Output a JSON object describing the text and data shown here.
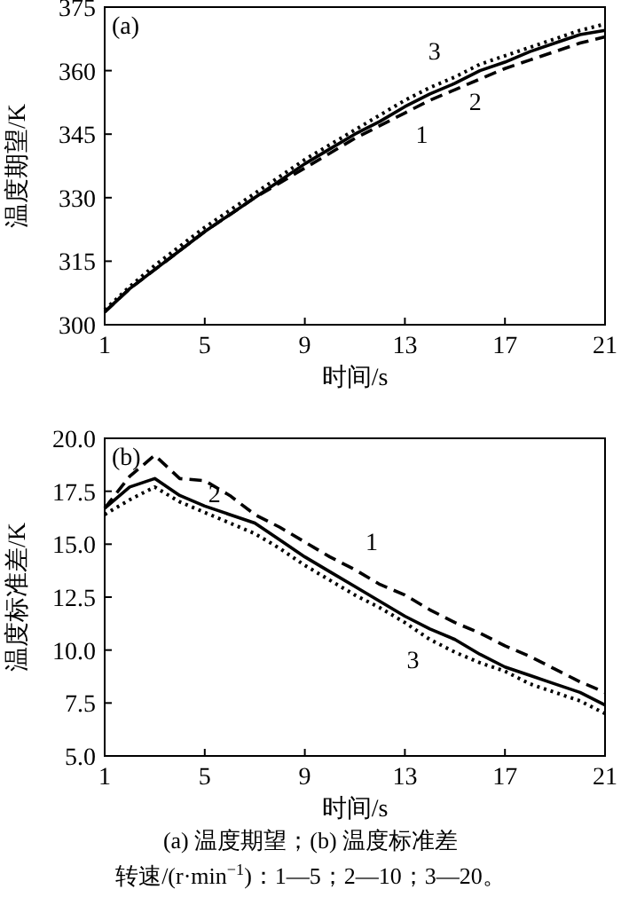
{
  "chart_data": [
    {
      "type": "line",
      "title": "(a)",
      "xlabel": "时间/s",
      "ylabel": "温度期望/K",
      "x": [
        1,
        2,
        3,
        4,
        5,
        6,
        7,
        8,
        9,
        10,
        11,
        12,
        13,
        14,
        15,
        16,
        17,
        18,
        19,
        20,
        21
      ],
      "xlim": [
        1,
        21
      ],
      "xticks": [
        1,
        5,
        9,
        13,
        17,
        21
      ],
      "ylim": [
        300,
        375
      ],
      "yticks": [
        300,
        315,
        330,
        345,
        360,
        375
      ],
      "series": [
        {
          "name": "1",
          "color": "#000000",
          "line_style": "dashed",
          "values": [
            303,
            308.5,
            313,
            317.5,
            322,
            326,
            330,
            333.5,
            337,
            340.5,
            344,
            347,
            350,
            353,
            355.5,
            358,
            360.5,
            362.5,
            364.5,
            366.5,
            368
          ]
        },
        {
          "name": "2",
          "color": "#000000",
          "line_style": "solid",
          "values": [
            303,
            308.5,
            313,
            317.5,
            322,
            326,
            330,
            334,
            338,
            341.5,
            345,
            348,
            351.5,
            354.5,
            357,
            360,
            362,
            364.5,
            366.5,
            368.5,
            369.5
          ]
        },
        {
          "name": "3",
          "color": "#000000",
          "line_style": "dotted",
          "values": [
            303.5,
            309,
            314,
            318.5,
            323,
            327,
            331,
            335,
            339,
            342.5,
            346,
            349.5,
            353,
            356,
            358.5,
            361.5,
            363.5,
            365.5,
            367.5,
            369.5,
            371
          ]
        }
      ]
    },
    {
      "type": "line",
      "title": "(b)",
      "xlabel": "时间/s",
      "ylabel": "温度标准差/K",
      "x": [
        1,
        2,
        3,
        4,
        5,
        6,
        7,
        8,
        9,
        10,
        11,
        12,
        13,
        14,
        15,
        16,
        17,
        18,
        19,
        20,
        21
      ],
      "xlim": [
        1,
        21
      ],
      "xticks": [
        1,
        5,
        9,
        13,
        17,
        21
      ],
      "ylim": [
        5,
        20
      ],
      "yticks": [
        {
          "value": 5,
          "label": "5.0"
        },
        {
          "value": 7.5,
          "label": "7.5"
        },
        {
          "value": 10,
          "label": "10.0"
        },
        {
          "value": 12.5,
          "label": "12.5"
        },
        {
          "value": 15,
          "label": "15.0"
        },
        {
          "value": 17.5,
          "label": "17.5"
        },
        {
          "value": 20,
          "label": "20.0"
        }
      ],
      "series": [
        {
          "name": "1",
          "color": "#000000",
          "line_style": "dashed",
          "values": [
            16.7,
            18.2,
            19.2,
            18.1,
            18.0,
            17.3,
            16.4,
            15.8,
            15.1,
            14.4,
            13.8,
            13.1,
            12.6,
            11.9,
            11.3,
            10.8,
            10.2,
            9.7,
            9.1,
            8.5,
            8.0
          ]
        },
        {
          "name": "2",
          "color": "#000000",
          "line_style": "solid",
          "values": [
            16.7,
            17.7,
            18.1,
            17.3,
            16.8,
            16.4,
            16.0,
            15.2,
            14.4,
            13.7,
            13.0,
            12.3,
            11.6,
            11.0,
            10.5,
            9.8,
            9.2,
            8.8,
            8.4,
            8.0,
            7.4
          ]
        },
        {
          "name": "3",
          "color": "#000000",
          "line_style": "dotted",
          "values": [
            16.4,
            17.1,
            17.7,
            17.0,
            16.5,
            16.0,
            15.5,
            14.8,
            14.0,
            13.3,
            12.6,
            12.0,
            11.3,
            10.5,
            9.9,
            9.4,
            9.0,
            8.4,
            8.0,
            7.6,
            7.0
          ]
        }
      ],
      "annotations": [
        "(a) 温度期望；(b) 温度标准差",
        "转速/(r·min$^{−1}$)：1—5；2—10；3—20。"
      ]
    }
  ]
}
